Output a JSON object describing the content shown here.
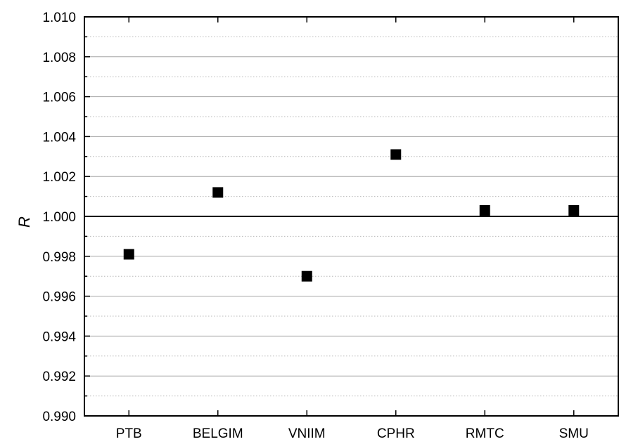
{
  "chart_data": {
    "type": "scatter",
    "title": "",
    "xlabel": "",
    "ylabel": "R",
    "categories": [
      "PTB",
      "BELGIM",
      "VNIIM",
      "CPHR",
      "RMTC",
      "SMU"
    ],
    "series": [
      {
        "values": [
          0.9981,
          1.0012,
          0.997,
          1.0031,
          1.0003,
          1.0003
        ]
      }
    ],
    "ylim": [
      0.99,
      1.01
    ],
    "yticks": [
      "0.990",
      "0.992",
      "0.994",
      "0.996",
      "0.998",
      "1.000",
      "1.002",
      "1.004",
      "1.006",
      "1.008",
      "1.010"
    ],
    "reference_line": 1.0,
    "grid": "major solid, minor dotted",
    "legend": "none",
    "marker": "filled square",
    "colors": {
      "marker": "#000000",
      "grid_major": "#a6a6a6",
      "grid_minor": "#b8b8b8",
      "axis": "#000000"
    }
  }
}
